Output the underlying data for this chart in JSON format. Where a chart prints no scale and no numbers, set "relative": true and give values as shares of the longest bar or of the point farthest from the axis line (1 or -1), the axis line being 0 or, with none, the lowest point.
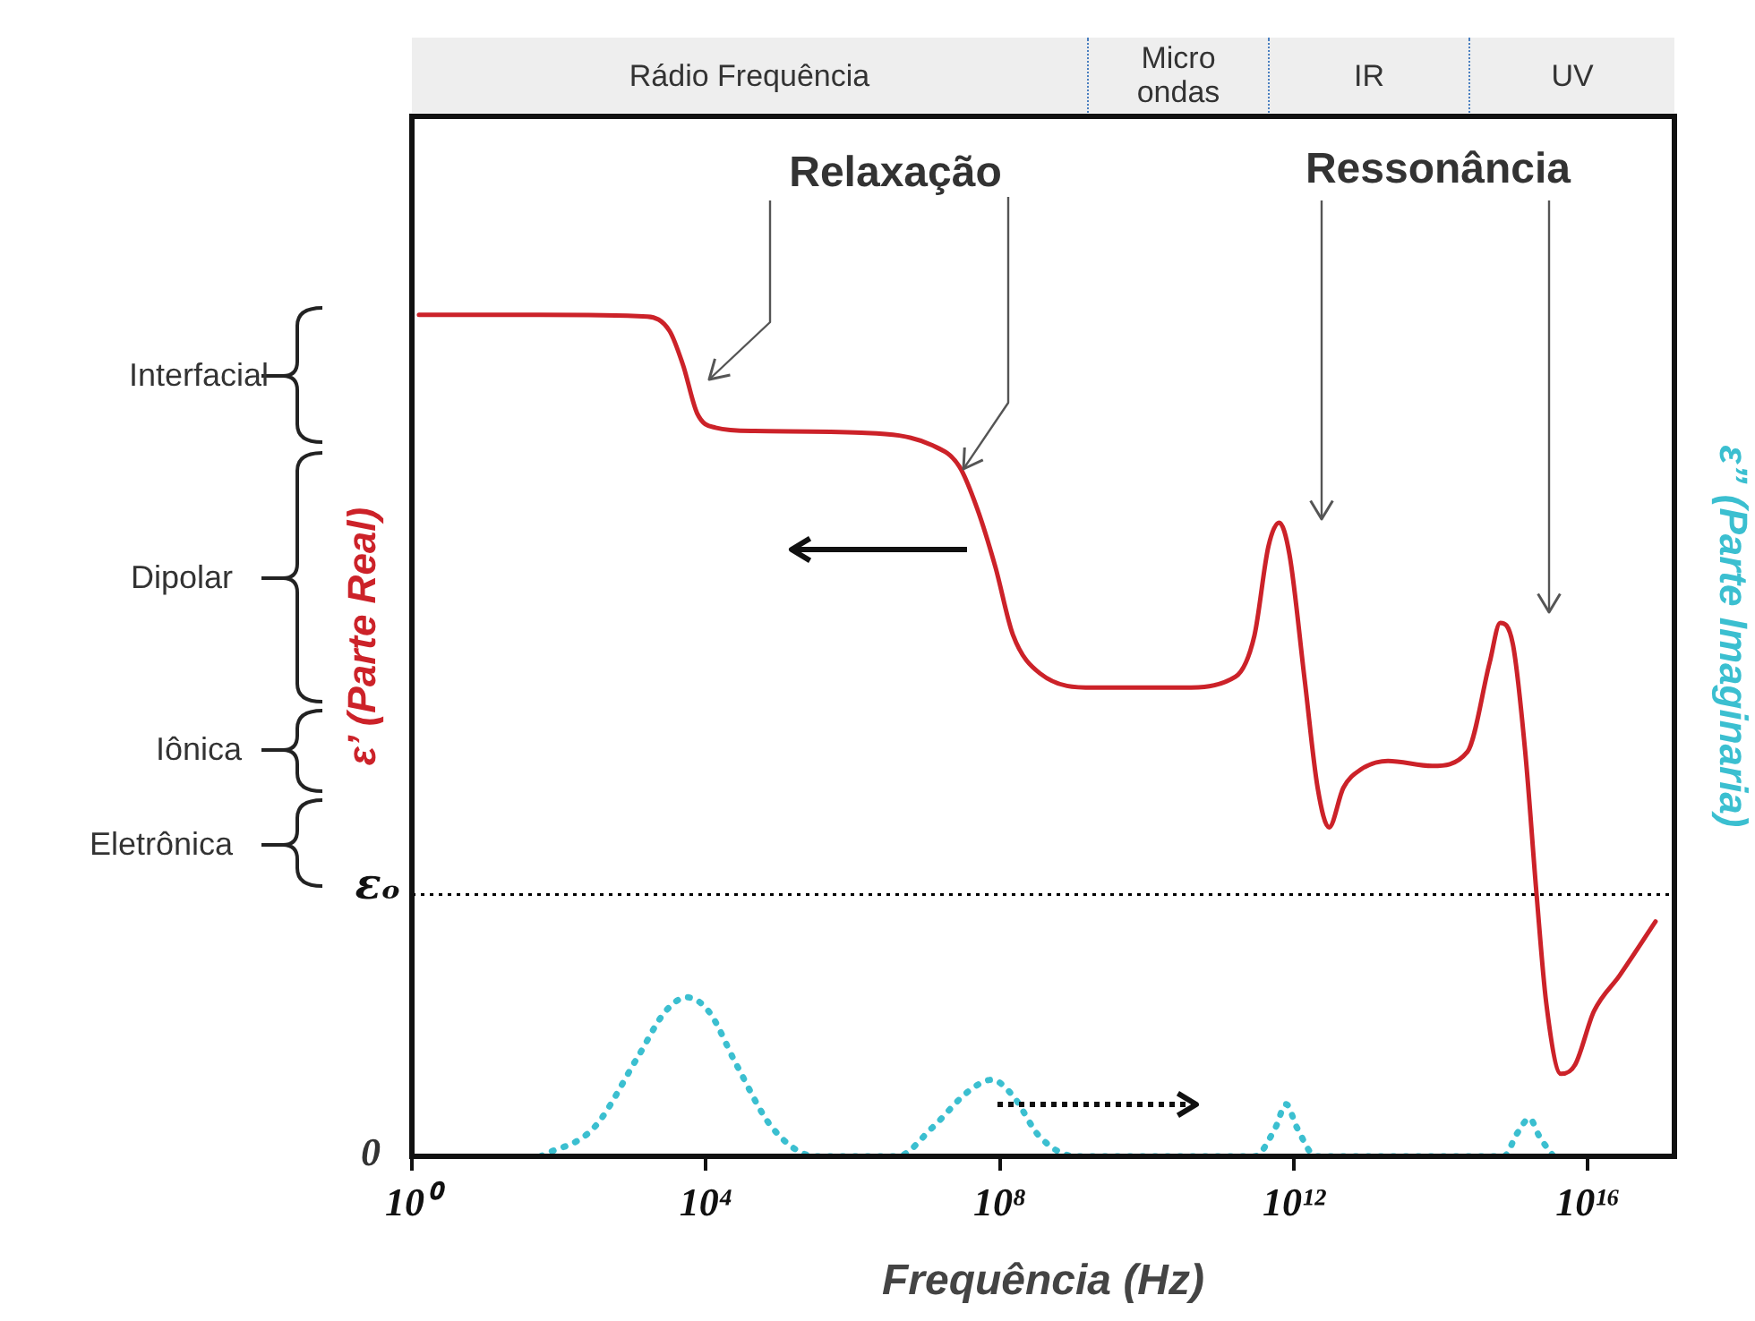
{
  "chart_data": {
    "type": "line",
    "xlabel": "Frequência (Hz)",
    "ylabel": "ε’ (Parte Real)",
    "y2label": "ε” (Parte Imaginaria)",
    "log": "x",
    "relative": true,
    "legend": false,
    "grid": false,
    "marker": "none",
    "xlim": [
      1,
      1.5e+17
    ],
    "xticks": [
      {
        "value": 1,
        "label": "10⁰"
      },
      {
        "value": 10000.0,
        "label": "10⁴"
      },
      {
        "value": 100000000.0,
        "label": "10⁸"
      },
      {
        "value": 1000000000000.0,
        "label": "10¹²"
      },
      {
        "value": 1e+16,
        "label": "10¹⁶"
      }
    ],
    "series": [
      {
        "color": "#cc2229",
        "line_style": "solid",
        "x": [
          1.25,
          56,
          1600.0,
          3200.0,
          4900.0,
          7600.0,
          13500.0,
          46000.0,
          1300000.0,
          12000000.0,
          28000000.0,
          49000000.0,
          87000000.0,
          150000000.0,
          350000000.0,
          1900000000.0,
          31000000000.0,
          160000000000.0,
          290000000000.0,
          450000000000.0,
          630000000000.0,
          870000000000.0,
          1400000000000.0,
          2100000000000.0,
          3000000000000.0,
          4700000000000.0,
          8200000000000.0,
          19000000000000.0,
          76000000000000.0,
          230000000000000.0,
          460000000000000.0,
          640000000000000.0,
          950000000000000.0,
          1400000000000000.0,
          2000000000000000.0,
          2700000000000000.0,
          4300000000000000.0,
          6700000000000000.0,
          1.2e+16,
          2.7e+16,
          8.3e+16
        ],
        "values": [
          1.0,
          1.0,
          0.998,
          0.981,
          0.94,
          0.883,
          0.866,
          0.862,
          0.86,
          0.845,
          0.82,
          0.77,
          0.7,
          0.62,
          0.574,
          0.557,
          0.557,
          0.57,
          0.619,
          0.725,
          0.753,
          0.715,
          0.566,
          0.438,
          0.391,
          0.438,
          0.46,
          0.47,
          0.464,
          0.481,
          0.587,
          0.634,
          0.609,
          0.481,
          0.311,
          0.183,
          0.098,
          0.109,
          0.172,
          0.215,
          0.279
        ]
      },
      {
        "color": "#3bbfd0",
        "line_style": "dotted",
        "axis": "y2",
        "x": [
          56,
          300.0,
          1200.0,
          2800.0,
          5500.0,
          11000.0,
          26000.0,
          80000.0,
          320000.0,
          4000000.0,
          12000000.0,
          37000000.0,
          78000000.0,
          150000000.0,
          350000000.0,
          1100000000.0,
          290000000000.0,
          560000000000.0,
          780000000000.0,
          1100000000000.0,
          2000000000000.0,
          710000000000000.0,
          1100000000000000.0,
          1600000000000000.0,
          2200000000000000.0,
          3400000000000000.0
        ],
        "values": [
          0,
          0.034,
          0.119,
          0.172,
          0.189,
          0.172,
          0.109,
          0.034,
          0,
          0,
          0.034,
          0.077,
          0.091,
          0.072,
          0.023,
          0,
          0,
          0.034,
          0.062,
          0.034,
          0,
          0,
          0.028,
          0.045,
          0.023,
          0
        ]
      }
    ],
    "ref_lines": [
      {
        "axis": "y",
        "value": 0.311,
        "label": "εₒ",
        "color": "#000000",
        "line_style": "dotted"
      }
    ],
    "annotations": [
      "Relaxação",
      "Ressonância",
      "Interfacial",
      "Dipolar",
      "Iônica",
      "Eletrônica",
      "0",
      "Rádio Frequência",
      "Micro ondas",
      "IR",
      "UV"
    ]
  }
}
